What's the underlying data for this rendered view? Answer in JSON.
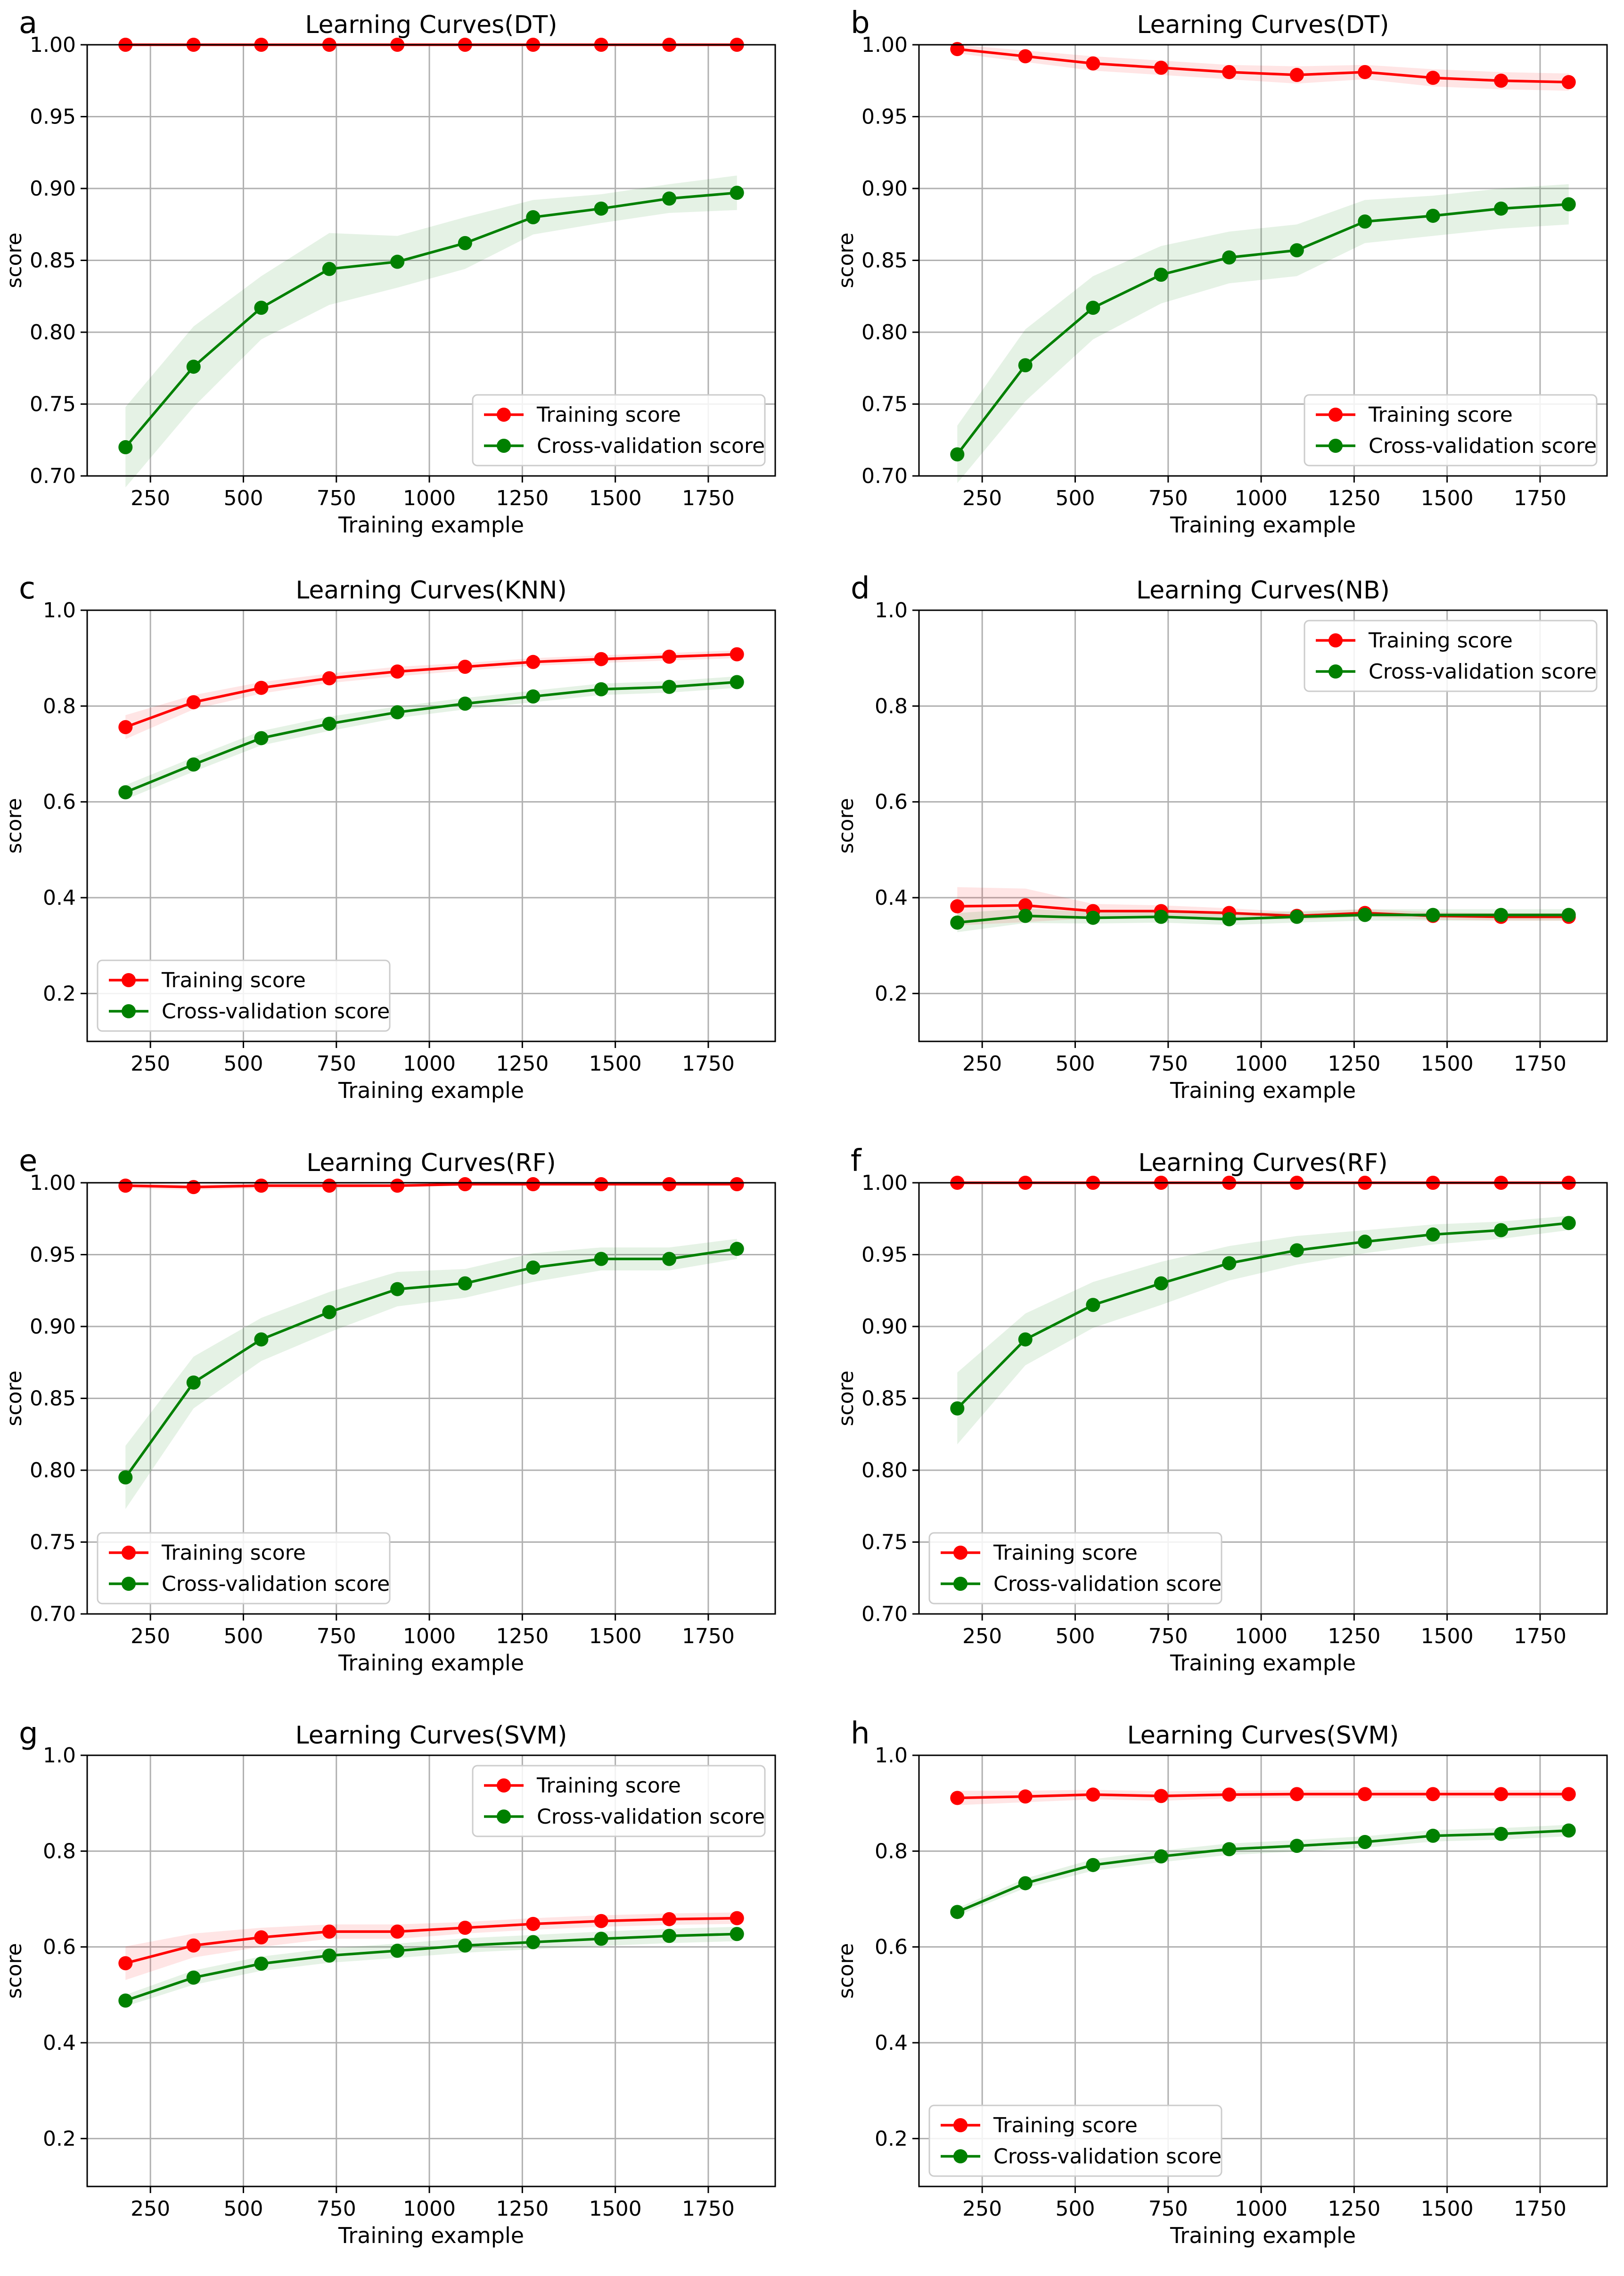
{
  "colors": {
    "training": "#ff0000",
    "cv": "#008000",
    "training_band": "#ff0000",
    "cv_band": "#008000",
    "grid": "#b0b0b0",
    "axis": "#000000"
  },
  "chart_data": [
    {
      "panel": "a",
      "type": "line",
      "title": "Learning Curves(DT)",
      "xlabel": "Training example",
      "ylabel": "score",
      "xlim": [
        80,
        1930
      ],
      "ylim": [
        0.7,
        1.0
      ],
      "xticks": [
        250,
        500,
        750,
        1000,
        1250,
        1500,
        1750
      ],
      "yticks": [
        0.7,
        0.75,
        0.8,
        0.85,
        0.9,
        0.95,
        1.0
      ],
      "ydecimals": 2,
      "legend": "lower-right",
      "x": [
        183,
        366,
        548,
        731,
        914,
        1096,
        1279,
        1462,
        1645,
        1827
      ],
      "series": [
        {
          "name": "Training score",
          "key": "training",
          "values": [
            1.0,
            1.0,
            1.0,
            1.0,
            1.0,
            1.0,
            1.0,
            1.0,
            1.0,
            1.0
          ],
          "band": [
            0.0,
            0.0,
            0.0,
            0.0,
            0.0,
            0.0,
            0.0,
            0.0,
            0.0,
            0.0
          ]
        },
        {
          "name": "Cross-validation score",
          "key": "cv",
          "values": [
            0.72,
            0.776,
            0.817,
            0.844,
            0.849,
            0.862,
            0.88,
            0.886,
            0.893,
            0.897
          ],
          "band": [
            0.028,
            0.028,
            0.022,
            0.025,
            0.018,
            0.018,
            0.012,
            0.01,
            0.01,
            0.012
          ]
        }
      ]
    },
    {
      "panel": "b",
      "type": "line",
      "title": "Learning Curves(DT)",
      "xlabel": "Training example",
      "ylabel": "score",
      "xlim": [
        80,
        1930
      ],
      "ylim": [
        0.7,
        1.0
      ],
      "xticks": [
        250,
        500,
        750,
        1000,
        1250,
        1500,
        1750
      ],
      "yticks": [
        0.7,
        0.75,
        0.8,
        0.85,
        0.9,
        0.95,
        1.0
      ],
      "ydecimals": 2,
      "legend": "lower-right",
      "x": [
        183,
        366,
        548,
        731,
        914,
        1096,
        1279,
        1462,
        1645,
        1827
      ],
      "series": [
        {
          "name": "Training score",
          "key": "training",
          "values": [
            0.997,
            0.992,
            0.987,
            0.984,
            0.981,
            0.979,
            0.981,
            0.977,
            0.975,
            0.974
          ],
          "band": [
            0.003,
            0.004,
            0.005,
            0.005,
            0.005,
            0.006,
            0.005,
            0.006,
            0.006,
            0.006
          ]
        },
        {
          "name": "Cross-validation score",
          "key": "cv",
          "values": [
            0.715,
            0.777,
            0.817,
            0.84,
            0.852,
            0.857,
            0.877,
            0.881,
            0.886,
            0.889
          ],
          "band": [
            0.02,
            0.025,
            0.022,
            0.02,
            0.018,
            0.018,
            0.015,
            0.014,
            0.014,
            0.014
          ]
        }
      ]
    },
    {
      "panel": "c",
      "type": "line",
      "title": "Learning Curves(KNN)",
      "xlabel": "Training example",
      "ylabel": "score",
      "xlim": [
        80,
        1930
      ],
      "ylim": [
        0.1,
        1.0
      ],
      "xticks": [
        250,
        500,
        750,
        1000,
        1250,
        1500,
        1750
      ],
      "yticks": [
        0.2,
        0.4,
        0.6,
        0.8,
        1.0
      ],
      "ydecimals": 1,
      "legend": "lower-left",
      "x": [
        183,
        366,
        548,
        731,
        914,
        1096,
        1279,
        1462,
        1645,
        1827
      ],
      "series": [
        {
          "name": "Training score",
          "key": "training",
          "values": [
            0.756,
            0.808,
            0.838,
            0.858,
            0.872,
            0.882,
            0.892,
            0.898,
            0.903,
            0.908
          ],
          "band": [
            0.025,
            0.015,
            0.012,
            0.01,
            0.01,
            0.008,
            0.008,
            0.008,
            0.008,
            0.008
          ]
        },
        {
          "name": "Cross-validation score",
          "key": "cv",
          "values": [
            0.62,
            0.678,
            0.733,
            0.763,
            0.787,
            0.805,
            0.82,
            0.835,
            0.84,
            0.85
          ],
          "band": [
            0.015,
            0.015,
            0.015,
            0.015,
            0.012,
            0.012,
            0.012,
            0.012,
            0.012,
            0.012
          ]
        }
      ]
    },
    {
      "panel": "d",
      "type": "line",
      "title": "Learning Curves(NB)",
      "xlabel": "Training example",
      "ylabel": "score",
      "xlim": [
        80,
        1930
      ],
      "ylim": [
        0.1,
        1.0
      ],
      "xticks": [
        250,
        500,
        750,
        1000,
        1250,
        1500,
        1750
      ],
      "yticks": [
        0.2,
        0.4,
        0.6,
        0.8,
        1.0
      ],
      "ydecimals": 1,
      "legend": "upper-right",
      "x": [
        183,
        366,
        548,
        731,
        914,
        1096,
        1279,
        1462,
        1645,
        1827
      ],
      "series": [
        {
          "name": "Training score",
          "key": "training",
          "values": [
            0.382,
            0.384,
            0.372,
            0.372,
            0.368,
            0.362,
            0.368,
            0.362,
            0.36,
            0.36
          ],
          "band": [
            0.04,
            0.035,
            0.015,
            0.012,
            0.01,
            0.008,
            0.008,
            0.008,
            0.008,
            0.008
          ]
        },
        {
          "name": "Cross-validation score",
          "key": "cv",
          "values": [
            0.348,
            0.362,
            0.358,
            0.36,
            0.355,
            0.36,
            0.364,
            0.364,
            0.364,
            0.364
          ],
          "band": [
            0.02,
            0.015,
            0.012,
            0.012,
            0.012,
            0.012,
            0.012,
            0.012,
            0.012,
            0.012
          ]
        }
      ]
    },
    {
      "panel": "e",
      "type": "line",
      "title": "Learning Curves(RF)",
      "xlabel": "Training example",
      "ylabel": "score",
      "xlim": [
        80,
        1930
      ],
      "ylim": [
        0.7,
        1.0
      ],
      "xticks": [
        250,
        500,
        750,
        1000,
        1250,
        1500,
        1750
      ],
      "yticks": [
        0.7,
        0.75,
        0.8,
        0.85,
        0.9,
        0.95,
        1.0
      ],
      "ydecimals": 2,
      "legend": "lower-left",
      "x": [
        183,
        366,
        548,
        731,
        914,
        1096,
        1279,
        1462,
        1645,
        1827
      ],
      "series": [
        {
          "name": "Training score",
          "key": "training",
          "values": [
            0.998,
            0.997,
            0.998,
            0.998,
            0.998,
            0.999,
            0.999,
            0.999,
            0.999,
            0.999
          ],
          "band": [
            0.002,
            0.002,
            0.002,
            0.002,
            0.001,
            0.001,
            0.001,
            0.001,
            0.001,
            0.001
          ]
        },
        {
          "name": "Cross-validation score",
          "key": "cv",
          "values": [
            0.795,
            0.861,
            0.891,
            0.91,
            0.926,
            0.93,
            0.941,
            0.947,
            0.947,
            0.954
          ],
          "band": [
            0.022,
            0.018,
            0.015,
            0.014,
            0.012,
            0.01,
            0.01,
            0.008,
            0.008,
            0.007
          ]
        }
      ]
    },
    {
      "panel": "f",
      "type": "line",
      "title": "Learning Curves(RF)",
      "xlabel": "Training example",
      "ylabel": "score",
      "xlim": [
        80,
        1930
      ],
      "ylim": [
        0.7,
        1.0
      ],
      "xticks": [
        250,
        500,
        750,
        1000,
        1250,
        1500,
        1750
      ],
      "yticks": [
        0.7,
        0.75,
        0.8,
        0.85,
        0.9,
        0.95,
        1.0
      ],
      "ydecimals": 2,
      "legend": "lower-left",
      "x": [
        183,
        366,
        548,
        731,
        914,
        1096,
        1279,
        1462,
        1645,
        1827
      ],
      "series": [
        {
          "name": "Training score",
          "key": "training",
          "values": [
            1.0,
            1.0,
            1.0,
            1.0,
            1.0,
            1.0,
            1.0,
            1.0,
            1.0,
            1.0
          ],
          "band": [
            0.0,
            0.0,
            0.0,
            0.0,
            0.0,
            0.0,
            0.0,
            0.0,
            0.0,
            0.0
          ]
        },
        {
          "name": "Cross-validation score",
          "key": "cv",
          "values": [
            0.843,
            0.891,
            0.915,
            0.93,
            0.944,
            0.953,
            0.959,
            0.964,
            0.967,
            0.972
          ],
          "band": [
            0.025,
            0.018,
            0.016,
            0.015,
            0.012,
            0.01,
            0.008,
            0.007,
            0.006,
            0.005
          ]
        }
      ]
    },
    {
      "panel": "g",
      "type": "line",
      "title": "Learning Curves(SVM)",
      "xlabel": "Training example",
      "ylabel": "score",
      "xlim": [
        80,
        1930
      ],
      "ylim": [
        0.1,
        1.0
      ],
      "xticks": [
        250,
        500,
        750,
        1000,
        1250,
        1500,
        1750
      ],
      "yticks": [
        0.2,
        0.4,
        0.6,
        0.8,
        1.0
      ],
      "ydecimals": 1,
      "legend": "upper-right",
      "x": [
        183,
        366,
        548,
        731,
        914,
        1096,
        1279,
        1462,
        1645,
        1827
      ],
      "series": [
        {
          "name": "Training score",
          "key": "training",
          "values": [
            0.566,
            0.603,
            0.62,
            0.632,
            0.632,
            0.64,
            0.648,
            0.654,
            0.658,
            0.66
          ],
          "band": [
            0.035,
            0.025,
            0.02,
            0.015,
            0.015,
            0.012,
            0.012,
            0.012,
            0.012,
            0.012
          ]
        },
        {
          "name": "Cross-validation score",
          "key": "cv",
          "values": [
            0.488,
            0.536,
            0.565,
            0.582,
            0.592,
            0.603,
            0.61,
            0.617,
            0.623,
            0.627
          ],
          "band": [
            0.012,
            0.015,
            0.015,
            0.015,
            0.015,
            0.015,
            0.015,
            0.015,
            0.015,
            0.015
          ]
        }
      ]
    },
    {
      "panel": "h",
      "type": "line",
      "title": "Learning Curves(SVM)",
      "xlabel": "Training example",
      "ylabel": "score",
      "xlim": [
        80,
        1930
      ],
      "ylim": [
        0.1,
        1.0
      ],
      "xticks": [
        250,
        500,
        750,
        1000,
        1250,
        1500,
        1750
      ],
      "yticks": [
        0.2,
        0.4,
        0.6,
        0.8,
        1.0
      ],
      "ydecimals": 1,
      "legend": "lower-left",
      "x": [
        183,
        366,
        548,
        731,
        914,
        1096,
        1279,
        1462,
        1645,
        1827
      ],
      "series": [
        {
          "name": "Training score",
          "key": "training",
          "values": [
            0.911,
            0.914,
            0.918,
            0.915,
            0.918,
            0.919,
            0.919,
            0.919,
            0.919,
            0.919
          ],
          "band": [
            0.015,
            0.012,
            0.01,
            0.01,
            0.008,
            0.008,
            0.008,
            0.008,
            0.008,
            0.008
          ]
        },
        {
          "name": "Cross-validation score",
          "key": "cv",
          "values": [
            0.673,
            0.733,
            0.771,
            0.789,
            0.804,
            0.811,
            0.819,
            0.832,
            0.836,
            0.843
          ],
          "band": [
            0.008,
            0.01,
            0.012,
            0.012,
            0.012,
            0.012,
            0.012,
            0.012,
            0.012,
            0.012
          ]
        }
      ]
    }
  ]
}
